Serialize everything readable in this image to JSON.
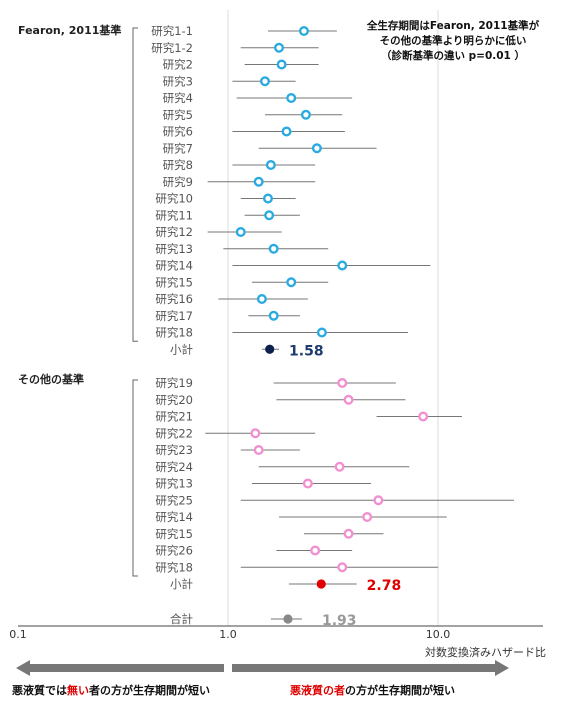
{
  "chart_data": {
    "type": "forest",
    "scale": "log",
    "xlim": [
      0.1,
      30
    ],
    "xticks": [
      {
        "value": 0.1,
        "label": "0.1"
      },
      {
        "value": 1,
        "label": "1.0"
      },
      {
        "value": 10,
        "label": "10.0"
      }
    ],
    "xlabel": "対数変換済みハザード比",
    "annotation": [
      "全生存期間はFearon, 2011基準が",
      "その他の基準より明らかに低い",
      "（診断基準の違い p=0.01 ）"
    ],
    "colors": {
      "group1_marker": "#29abe2",
      "group2_marker": "#f28fd0",
      "group1_subtotal": "#0d2150",
      "group2_subtotal": "#e00000",
      "total": "#888888",
      "ci_line": "#777777",
      "arrow": "#777777"
    },
    "groups": [
      {
        "name": "Fearon, 2011基準",
        "studies": [
          {
            "label": "研究1-1",
            "hr": 2.3,
            "lo": 1.55,
            "hi": 3.3
          },
          {
            "label": "研究1-2",
            "hr": 1.75,
            "lo": 1.15,
            "hi": 2.7
          },
          {
            "label": "研究2",
            "hr": 1.8,
            "lo": 1.2,
            "hi": 2.7
          },
          {
            "label": "研究3",
            "hr": 1.5,
            "lo": 1.05,
            "hi": 2.1
          },
          {
            "label": "研究4",
            "hr": 2.0,
            "lo": 1.1,
            "hi": 3.9
          },
          {
            "label": "研究5",
            "hr": 2.35,
            "lo": 1.5,
            "hi": 3.5
          },
          {
            "label": "研究6",
            "hr": 1.9,
            "lo": 1.05,
            "hi": 3.6
          },
          {
            "label": "研究7",
            "hr": 2.65,
            "lo": 1.4,
            "hi": 5.1
          },
          {
            "label": "研究8",
            "hr": 1.6,
            "lo": 1.05,
            "hi": 2.6
          },
          {
            "label": "研究9",
            "hr": 1.4,
            "lo": 0.8,
            "hi": 2.6
          },
          {
            "label": "研究10",
            "hr": 1.55,
            "lo": 1.15,
            "hi": 2.1
          },
          {
            "label": "研究11",
            "hr": 1.57,
            "lo": 1.2,
            "hi": 2.2
          },
          {
            "label": "研究12",
            "hr": 1.15,
            "lo": 0.8,
            "hi": 1.8
          },
          {
            "label": "研究13",
            "hr": 1.65,
            "lo": 0.95,
            "hi": 3.0
          },
          {
            "label": "研究14",
            "hr": 3.5,
            "lo": 1.05,
            "hi": 9.2
          },
          {
            "label": "研究15",
            "hr": 2.0,
            "lo": 1.3,
            "hi": 3.0
          },
          {
            "label": "研究16",
            "hr": 1.45,
            "lo": 0.9,
            "hi": 2.4
          },
          {
            "label": "研究17",
            "hr": 1.65,
            "lo": 1.25,
            "hi": 2.2
          },
          {
            "label": "研究18",
            "hr": 2.8,
            "lo": 1.05,
            "hi": 7.2
          }
        ],
        "subtotal": {
          "label": "小計",
          "hr": 1.58,
          "lo": 1.45,
          "hi": 1.75,
          "value_label": "1.58"
        }
      },
      {
        "name": "その他の基準",
        "studies": [
          {
            "label": "研究19",
            "hr": 3.5,
            "lo": 1.65,
            "hi": 6.3
          },
          {
            "label": "研究20",
            "hr": 3.75,
            "lo": 1.7,
            "hi": 7.0
          },
          {
            "label": "研究21",
            "hr": 8.5,
            "lo": 5.1,
            "hi": 13.0
          },
          {
            "label": "研究22",
            "hr": 1.35,
            "lo": 0.78,
            "hi": 2.6
          },
          {
            "label": "研究23",
            "hr": 1.4,
            "lo": 1.15,
            "hi": 2.2
          },
          {
            "label": "研究24",
            "hr": 3.4,
            "lo": 1.4,
            "hi": 7.3
          },
          {
            "label": "研究13",
            "hr": 2.4,
            "lo": 1.3,
            "hi": 4.8
          },
          {
            "label": "研究25",
            "hr": 5.2,
            "lo": 1.15,
            "hi": 23.0
          },
          {
            "label": "研究14",
            "hr": 4.6,
            "lo": 1.75,
            "hi": 11.0
          },
          {
            "label": "研究15",
            "hr": 3.75,
            "lo": 2.3,
            "hi": 5.5
          },
          {
            "label": "研究26",
            "hr": 2.6,
            "lo": 1.7,
            "hi": 3.9
          },
          {
            "label": "研究18",
            "hr": 3.5,
            "lo": 1.15,
            "hi": 10.0
          }
        ],
        "subtotal": {
          "label": "小計",
          "hr": 2.78,
          "lo": 1.95,
          "hi": 4.1,
          "value_label": "2.78"
        }
      }
    ],
    "total": {
      "label": "合計",
      "hr": 1.93,
      "lo": 1.6,
      "hi": 2.25,
      "value_label": "1.93"
    },
    "footer": {
      "left_text_parts": [
        "悪液質では",
        "無い",
        "者の方が生存期間が短い"
      ],
      "right_text_parts": [
        "悪液質の者",
        "の方が生存期間が短い"
      ]
    }
  }
}
